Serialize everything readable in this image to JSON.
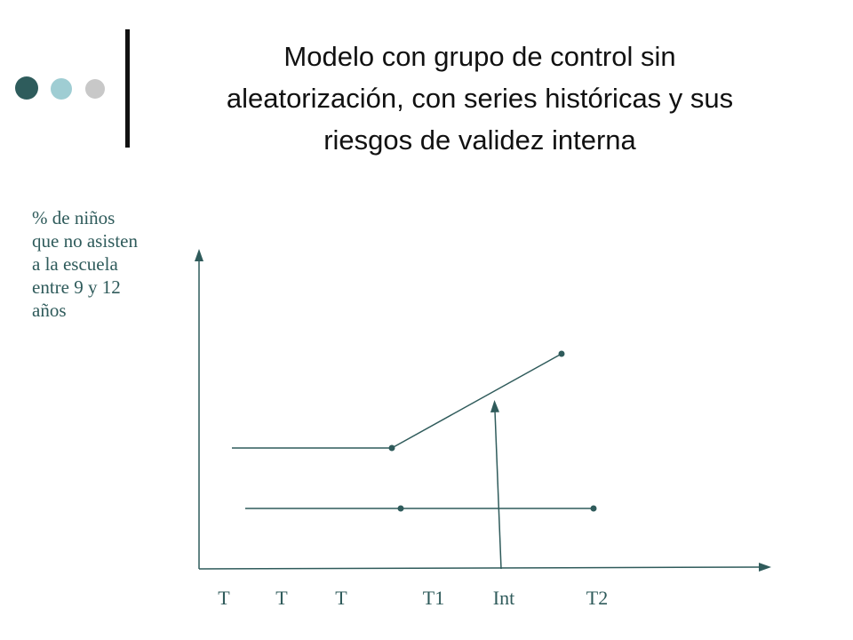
{
  "title_lines": [
    "Modelo con grupo de control sin",
    "aleatorización,  con series históricas  y sus",
    "riesgos de validez  interna"
  ],
  "y_label_lines": [
    "% de niños",
    "que no asisten",
    "a la escuela",
    "entre 9 y 12",
    "años"
  ],
  "x_labels": [
    "T",
    "T",
    "T",
    "T1",
    "Int",
    "T2"
  ],
  "colors": {
    "dot_dark": "#2e5c5c",
    "dot_light": "#9fcdd3",
    "dot_gray": "#c8c8c8",
    "line": "#2f5b5b",
    "label_text": "#2f5b5b",
    "title_text": "#111111"
  }
}
